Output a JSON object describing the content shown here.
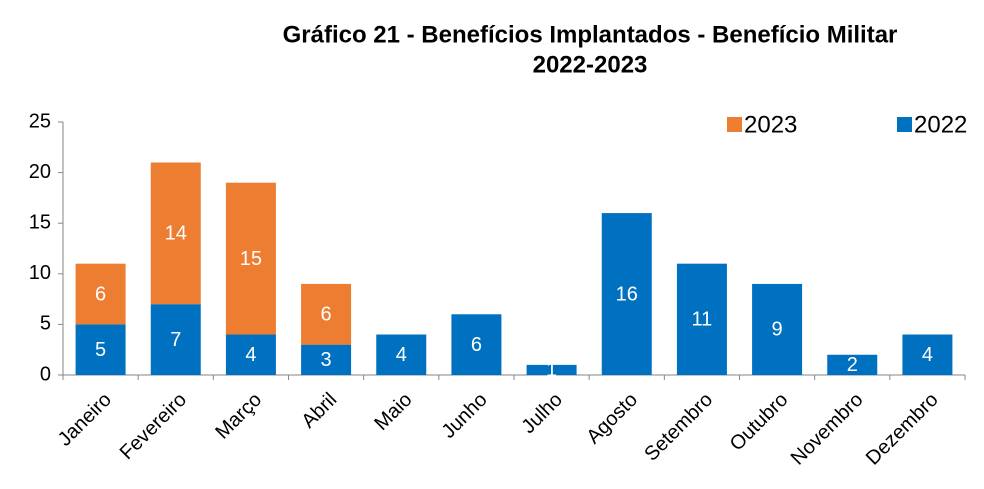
{
  "chart_data": {
    "type": "stacked_bar",
    "title": [
      "Gráfico 21 - Benefícios Implantados - Benefício Militar",
      "2022-2023"
    ],
    "categories": [
      "Janeiro",
      "Fevereiro",
      "Março",
      "Abril",
      "Maio",
      "Junho",
      "Julho",
      "Agosto",
      "Setembro",
      "Outubro",
      "Novembro",
      "Dezembro"
    ],
    "series": [
      {
        "name": "2023",
        "color": "#ED7D31",
        "values": [
          6,
          14,
          15,
          6,
          null,
          null,
          null,
          null,
          null,
          null,
          null,
          null
        ]
      },
      {
        "name": "2022",
        "color": "#0070C0",
        "values": [
          5,
          7,
          4,
          3,
          4,
          6,
          1,
          16,
          11,
          9,
          2,
          4
        ]
      }
    ],
    "ylim": [
      0,
      25
    ],
    "yticks": [
      0,
      5,
      10,
      15,
      20,
      25
    ],
    "legend": "top-right"
  }
}
